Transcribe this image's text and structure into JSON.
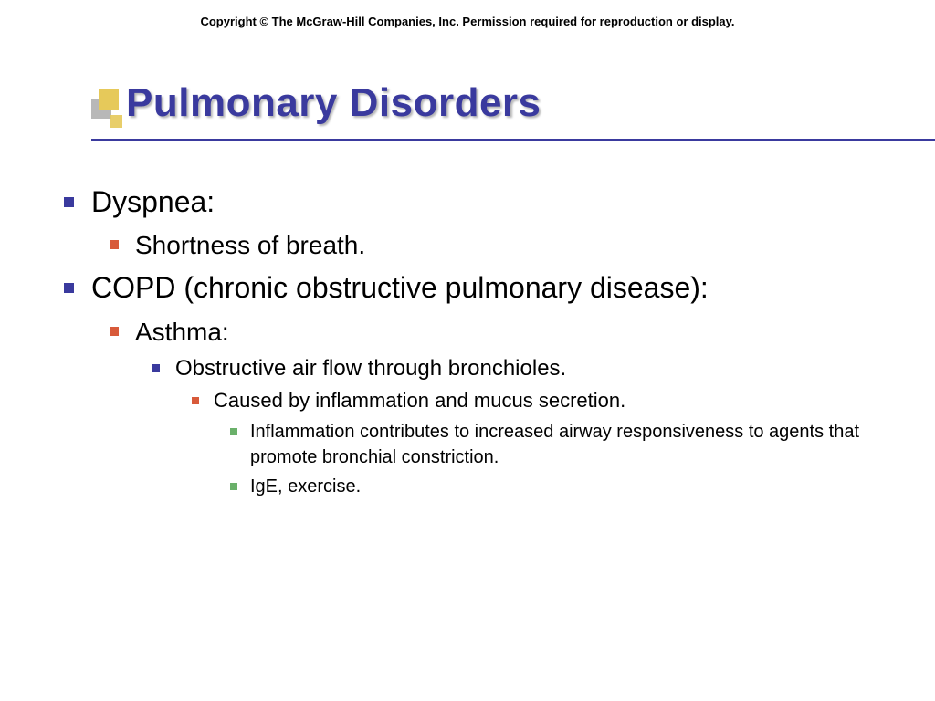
{
  "copyright": "Copyright © The McGraw-Hill Companies, Inc. Permission required for reproduction or display.",
  "title": "Pulmonary Disorders",
  "colors": {
    "title": "#3a3a9e",
    "rule": "#3a3a9e",
    "bullet_lv1": "#3a3a9e",
    "bullet_lv2": "#d85a3a",
    "bullet_lv3": "#3a3a9e",
    "bullet_lv4": "#d85a3a",
    "bullet_lv5": "#6ab06a",
    "deco_yellow": "#e6c95a",
    "deco_gray": "#b0b0b0",
    "background": "#ffffff",
    "text": "#000000"
  },
  "typography": {
    "title_fontsize": 44,
    "lv1_fontsize": 32,
    "lv2_fontsize": 28,
    "lv3_fontsize": 24,
    "lv4_fontsize": 22,
    "lv5_fontsize": 20,
    "copyright_fontsize": 13,
    "font_family": "Verdana"
  },
  "bullets": {
    "lv1": [
      {
        "text": "Dyspnea:",
        "children": [
          {
            "text": "Shortness of breath."
          }
        ]
      },
      {
        "text": "COPD (chronic obstructive pulmonary disease):",
        "children": [
          {
            "text": "Asthma:",
            "children": [
              {
                "text": "Obstructive air flow through bronchioles.",
                "children": [
                  {
                    "text": "Caused by inflammation and mucus secretion.",
                    "children": [
                      {
                        "text": "Inflammation contributes to increased airway responsiveness to agents that promote bronchial constriction."
                      },
                      {
                        "text": "IgE, exercise."
                      }
                    ]
                  }
                ]
              }
            ]
          }
        ]
      }
    ]
  }
}
